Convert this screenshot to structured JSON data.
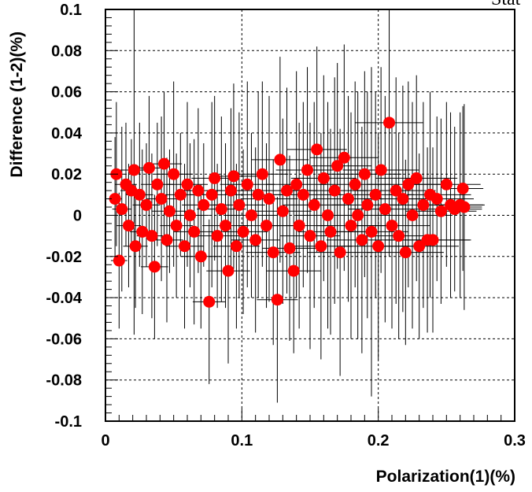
{
  "chart_data": {
    "type": "scatter",
    "title": "",
    "corner_text": "Stat",
    "xlabel": "Polarization(1)(%)",
    "ylabel": "Difference (1-2)(%)",
    "xlim": [
      0,
      0.3
    ],
    "ylim": [
      -0.1,
      0.1
    ],
    "x_ticks": [
      0,
      0.1,
      0.2,
      0.3
    ],
    "x_tick_labels": [
      "0",
      "0.1",
      "0.2",
      "0.3"
    ],
    "y_ticks": [
      -0.1,
      -0.08,
      -0.06,
      -0.04,
      -0.02,
      0,
      0.02,
      0.04,
      0.06,
      0.08,
      0.1
    ],
    "y_tick_labels": [
      "-0.1",
      "-0.08",
      "-0.06",
      "-0.04",
      "-0.02",
      "0",
      "0.02",
      "0.04",
      "0.06",
      "0.08",
      "0.1"
    ],
    "grid": true,
    "marker_color": "#ff0000",
    "error_bar_color": "#000000",
    "points": [
      {
        "x": 0.008,
        "y": 0.02,
        "ex": 0.006,
        "ey": 0.035
      },
      {
        "x": 0.007,
        "y": 0.008,
        "ex": 0.005,
        "ey": 0.03
      },
      {
        "x": 0.01,
        "y": -0.022,
        "ex": 0.006,
        "ey": 0.033
      },
      {
        "x": 0.012,
        "y": 0.003,
        "ex": 0.007,
        "ey": 0.04
      },
      {
        "x": 0.015,
        "y": 0.015,
        "ex": 0.008,
        "ey": 0.03
      },
      {
        "x": 0.017,
        "y": -0.005,
        "ex": 0.009,
        "ey": 0.03
      },
      {
        "x": 0.019,
        "y": 0.012,
        "ex": 0.008,
        "ey": 0.025
      },
      {
        "x": 0.021,
        "y": 0.022,
        "ex": 0.01,
        "ey": 0.08
      },
      {
        "x": 0.022,
        "y": -0.015,
        "ex": 0.009,
        "ey": 0.03
      },
      {
        "x": 0.025,
        "y": 0.01,
        "ex": 0.01,
        "ey": 0.035
      },
      {
        "x": 0.027,
        "y": -0.008,
        "ex": 0.009,
        "ey": 0.04
      },
      {
        "x": 0.03,
        "y": 0.005,
        "ex": 0.01,
        "ey": 0.03
      },
      {
        "x": 0.032,
        "y": 0.023,
        "ex": 0.012,
        "ey": 0.035
      },
      {
        "x": 0.034,
        "y": -0.01,
        "ex": 0.011,
        "ey": 0.04
      },
      {
        "x": 0.036,
        "y": -0.025,
        "ex": 0.01,
        "ey": 0.035
      },
      {
        "x": 0.038,
        "y": 0.015,
        "ex": 0.012,
        "ey": 0.03
      },
      {
        "x": 0.041,
        "y": 0.008,
        "ex": 0.011,
        "ey": 0.04
      },
      {
        "x": 0.043,
        "y": 0.025,
        "ex": 0.013,
        "ey": 0.035
      },
      {
        "x": 0.045,
        "y": -0.012,
        "ex": 0.012,
        "ey": 0.04
      },
      {
        "x": 0.047,
        "y": 0.002,
        "ex": 0.013,
        "ey": 0.03
      },
      {
        "x": 0.05,
        "y": 0.02,
        "ex": 0.014,
        "ey": 0.045
      },
      {
        "x": 0.052,
        "y": -0.005,
        "ex": 0.012,
        "ey": 0.035
      },
      {
        "x": 0.055,
        "y": 0.01,
        "ex": 0.013,
        "ey": 0.03
      },
      {
        "x": 0.058,
        "y": -0.015,
        "ex": 0.014,
        "ey": 0.04
      },
      {
        "x": 0.06,
        "y": 0.015,
        "ex": 0.015,
        "ey": 0.04
      },
      {
        "x": 0.062,
        "y": 0.0,
        "ex": 0.014,
        "ey": 0.035
      },
      {
        "x": 0.065,
        "y": -0.008,
        "ex": 0.015,
        "ey": 0.045
      },
      {
        "x": 0.068,
        "y": 0.012,
        "ex": 0.016,
        "ey": 0.04
      },
      {
        "x": 0.07,
        "y": -0.02,
        "ex": 0.015,
        "ey": 0.035
      },
      {
        "x": 0.072,
        "y": 0.005,
        "ex": 0.016,
        "ey": 0.03
      },
      {
        "x": 0.076,
        "y": -0.042,
        "ex": 0.012,
        "ey": 0.04
      },
      {
        "x": 0.078,
        "y": 0.01,
        "ex": 0.016,
        "ey": 0.045
      },
      {
        "x": 0.08,
        "y": 0.018,
        "ex": 0.017,
        "ey": 0.04
      },
      {
        "x": 0.082,
        "y": -0.01,
        "ex": 0.016,
        "ey": 0.035
      },
      {
        "x": 0.085,
        "y": 0.003,
        "ex": 0.018,
        "ey": 0.045
      },
      {
        "x": 0.088,
        "y": -0.005,
        "ex": 0.017,
        "ey": 0.04
      },
      {
        "x": 0.09,
        "y": -0.027,
        "ex": 0.016,
        "ey": 0.045
      },
      {
        "x": 0.092,
        "y": 0.012,
        "ex": 0.018,
        "ey": 0.04
      },
      {
        "x": 0.094,
        "y": 0.019,
        "ex": 0.018,
        "ey": 0.045
      },
      {
        "x": 0.096,
        "y": -0.015,
        "ex": 0.017,
        "ey": 0.04
      },
      {
        "x": 0.098,
        "y": 0.005,
        "ex": 0.019,
        "ey": 0.045
      },
      {
        "x": 0.101,
        "y": -0.008,
        "ex": 0.018,
        "ey": 0.04
      },
      {
        "x": 0.104,
        "y": 0.015,
        "ex": 0.02,
        "ey": 0.05
      },
      {
        "x": 0.107,
        "y": 0.0,
        "ex": 0.019,
        "ey": 0.04
      },
      {
        "x": 0.11,
        "y": -0.012,
        "ex": 0.018,
        "ey": 0.045
      },
      {
        "x": 0.112,
        "y": 0.01,
        "ex": 0.02,
        "ey": 0.05
      },
      {
        "x": 0.115,
        "y": 0.02,
        "ex": 0.019,
        "ey": 0.045
      },
      {
        "x": 0.118,
        "y": -0.005,
        "ex": 0.02,
        "ey": 0.04
      },
      {
        "x": 0.12,
        "y": 0.008,
        "ex": 0.021,
        "ey": 0.05
      },
      {
        "x": 0.123,
        "y": -0.018,
        "ex": 0.02,
        "ey": 0.045
      },
      {
        "x": 0.126,
        "y": -0.041,
        "ex": 0.015,
        "ey": 0.05
      },
      {
        "x": 0.128,
        "y": 0.027,
        "ex": 0.021,
        "ey": 0.05
      },
      {
        "x": 0.13,
        "y": 0.002,
        "ex": 0.021,
        "ey": 0.045
      },
      {
        "x": 0.133,
        "y": 0.012,
        "ex": 0.022,
        "ey": 0.05
      },
      {
        "x": 0.135,
        "y": -0.016,
        "ex": 0.02,
        "ey": 0.045
      },
      {
        "x": 0.138,
        "y": -0.027,
        "ex": 0.02,
        "ey": 0.04
      },
      {
        "x": 0.14,
        "y": 0.015,
        "ex": 0.022,
        "ey": 0.055
      },
      {
        "x": 0.142,
        "y": -0.005,
        "ex": 0.021,
        "ey": 0.05
      },
      {
        "x": 0.145,
        "y": 0.01,
        "ex": 0.022,
        "ey": 0.045
      },
      {
        "x": 0.148,
        "y": 0.022,
        "ex": 0.023,
        "ey": 0.05
      },
      {
        "x": 0.15,
        "y": -0.01,
        "ex": 0.022,
        "ey": 0.055
      },
      {
        "x": 0.153,
        "y": 0.005,
        "ex": 0.023,
        "ey": 0.05
      },
      {
        "x": 0.155,
        "y": 0.032,
        "ex": 0.022,
        "ey": 0.05
      },
      {
        "x": 0.158,
        "y": -0.015,
        "ex": 0.023,
        "ey": 0.055
      },
      {
        "x": 0.16,
        "y": 0.018,
        "ex": 0.024,
        "ey": 0.05
      },
      {
        "x": 0.163,
        "y": 0.0,
        "ex": 0.023,
        "ey": 0.055
      },
      {
        "x": 0.165,
        "y": -0.008,
        "ex": 0.024,
        "ey": 0.05
      },
      {
        "x": 0.168,
        "y": 0.012,
        "ex": 0.024,
        "ey": 0.055
      },
      {
        "x": 0.17,
        "y": 0.024,
        "ex": 0.025,
        "ey": 0.05
      },
      {
        "x": 0.172,
        "y": -0.018,
        "ex": 0.024,
        "ey": 0.06
      },
      {
        "x": 0.175,
        "y": 0.028,
        "ex": 0.025,
        "ey": 0.055
      },
      {
        "x": 0.178,
        "y": 0.008,
        "ex": 0.026,
        "ey": 0.05
      },
      {
        "x": 0.18,
        "y": -0.005,
        "ex": 0.025,
        "ey": 0.055
      },
      {
        "x": 0.183,
        "y": 0.015,
        "ex": 0.026,
        "ey": 0.05
      },
      {
        "x": 0.185,
        "y": 0.0,
        "ex": 0.025,
        "ey": 0.06
      },
      {
        "x": 0.188,
        "y": -0.012,
        "ex": 0.026,
        "ey": 0.055
      },
      {
        "x": 0.19,
        "y": 0.02,
        "ex": 0.027,
        "ey": 0.05
      },
      {
        "x": 0.192,
        "y": 0.005,
        "ex": 0.026,
        "ey": 0.055
      },
      {
        "x": 0.195,
        "y": -0.008,
        "ex": 0.027,
        "ey": 0.08
      },
      {
        "x": 0.198,
        "y": 0.01,
        "ex": 0.028,
        "ey": 0.05
      },
      {
        "x": 0.2,
        "y": -0.015,
        "ex": 0.027,
        "ey": 0.055
      },
      {
        "x": 0.202,
        "y": 0.022,
        "ex": 0.028,
        "ey": 0.05
      },
      {
        "x": 0.205,
        "y": 0.003,
        "ex": 0.027,
        "ey": 0.055
      },
      {
        "x": 0.208,
        "y": 0.045,
        "ex": 0.025,
        "ey": 0.065
      },
      {
        "x": 0.21,
        "y": -0.005,
        "ex": 0.028,
        "ey": 0.05
      },
      {
        "x": 0.213,
        "y": 0.012,
        "ex": 0.029,
        "ey": 0.055
      },
      {
        "x": 0.215,
        "y": -0.01,
        "ex": 0.028,
        "ey": 0.05
      },
      {
        "x": 0.218,
        "y": 0.008,
        "ex": 0.029,
        "ey": 0.055
      },
      {
        "x": 0.22,
        "y": -0.018,
        "ex": 0.028,
        "ey": 0.045
      },
      {
        "x": 0.222,
        "y": 0.015,
        "ex": 0.03,
        "ey": 0.05
      },
      {
        "x": 0.225,
        "y": 0.0,
        "ex": 0.029,
        "ey": 0.055
      },
      {
        "x": 0.228,
        "y": 0.018,
        "ex": 0.03,
        "ey": 0.05
      },
      {
        "x": 0.23,
        "y": -0.015,
        "ex": 0.029,
        "ey": 0.045
      },
      {
        "x": 0.233,
        "y": 0.005,
        "ex": 0.03,
        "ey": 0.05
      },
      {
        "x": 0.236,
        "y": -0.012,
        "ex": 0.031,
        "ey": 0.045
      },
      {
        "x": 0.238,
        "y": 0.01,
        "ex": 0.03,
        "ey": 0.05
      },
      {
        "x": 0.24,
        "y": -0.012,
        "ex": 0.028,
        "ey": 0.045
      },
      {
        "x": 0.243,
        "y": 0.008,
        "ex": 0.027,
        "ey": 0.04
      },
      {
        "x": 0.246,
        "y": 0.002,
        "ex": 0.026,
        "ey": 0.045
      },
      {
        "x": 0.25,
        "y": 0.015,
        "ex": 0.025,
        "ey": 0.04
      },
      {
        "x": 0.253,
        "y": 0.005,
        "ex": 0.024,
        "ey": 0.045
      },
      {
        "x": 0.256,
        "y": 0.003,
        "ex": 0.02,
        "ey": 0.04
      },
      {
        "x": 0.26,
        "y": 0.005,
        "ex": 0.018,
        "ey": 0.045
      },
      {
        "x": 0.262,
        "y": 0.013,
        "ex": 0.015,
        "ey": 0.04
      },
      {
        "x": 0.263,
        "y": 0.004,
        "ex": 0.013,
        "ey": 0.05
      }
    ]
  }
}
